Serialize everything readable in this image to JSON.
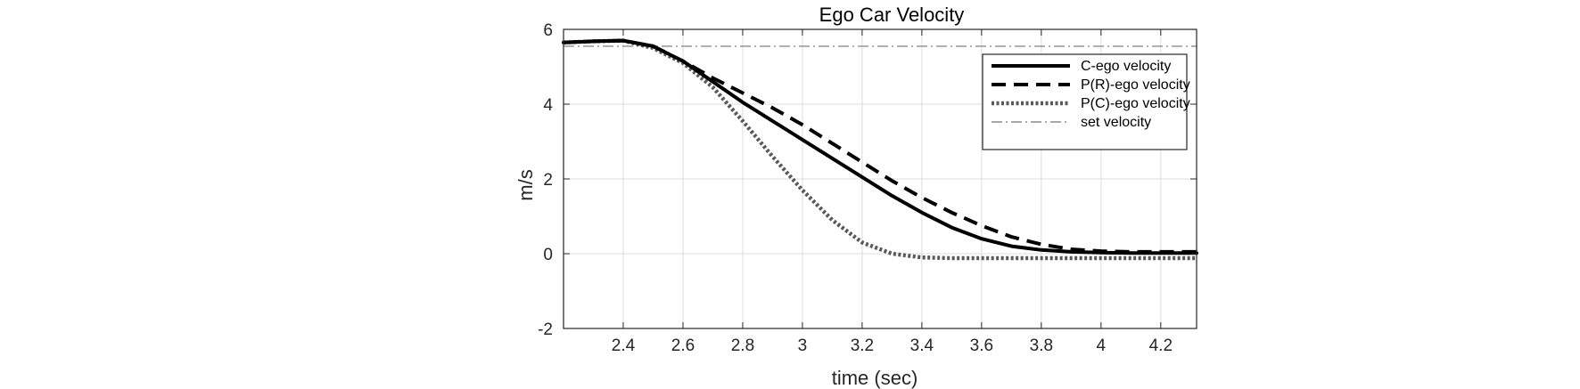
{
  "chart_data": {
    "type": "line",
    "title": "Ego Car Velocity",
    "xlabel": "time (sec)",
    "ylabel": "m/s",
    "xlim": [
      2.2,
      4.32
    ],
    "ylim": [
      -2,
      6
    ],
    "xticks": [
      2.4,
      2.6,
      2.8,
      3,
      3.2,
      3.4,
      3.6,
      3.8,
      4,
      4.2
    ],
    "yticks": [
      -2,
      0,
      2,
      4,
      6
    ],
    "grid": true,
    "legend_position": "top-right",
    "series": [
      {
        "name": "C-ego velocity",
        "color": "#000000",
        "style": "solid",
        "x": [
          2.2,
          2.3,
          2.4,
          2.5,
          2.6,
          2.7,
          2.8,
          2.9,
          3.0,
          3.1,
          3.2,
          3.3,
          3.4,
          3.5,
          3.6,
          3.7,
          3.8,
          3.9,
          4.0,
          4.1,
          4.2,
          4.32
        ],
        "y": [
          5.65,
          5.68,
          5.7,
          5.55,
          5.15,
          4.6,
          4.05,
          3.55,
          3.05,
          2.55,
          2.05,
          1.55,
          1.1,
          0.7,
          0.4,
          0.2,
          0.1,
          0.05,
          0.03,
          0.02,
          0.02,
          0.02
        ]
      },
      {
        "name": "P(R)-ego velocity",
        "color": "#000000",
        "style": "dashed",
        "x": [
          2.2,
          2.3,
          2.4,
          2.5,
          2.6,
          2.7,
          2.8,
          2.9,
          3.0,
          3.1,
          3.2,
          3.3,
          3.4,
          3.5,
          3.6,
          3.7,
          3.8,
          3.9,
          4.0,
          4.1,
          4.2,
          4.32
        ],
        "y": [
          5.65,
          5.68,
          5.7,
          5.55,
          5.15,
          4.7,
          4.3,
          3.9,
          3.45,
          2.95,
          2.45,
          1.95,
          1.5,
          1.1,
          0.75,
          0.45,
          0.25,
          0.12,
          0.07,
          0.05,
          0.05,
          0.05
        ]
      },
      {
        "name": "P(C)-ego velocity",
        "color": "#595959",
        "style": "dotted",
        "x": [
          2.2,
          2.3,
          2.4,
          2.5,
          2.6,
          2.7,
          2.8,
          2.9,
          3.0,
          3.1,
          3.2,
          3.3,
          3.4,
          3.5,
          3.6,
          3.7,
          3.8,
          3.9,
          4.0,
          4.1,
          4.2,
          4.32
        ],
        "y": [
          5.65,
          5.68,
          5.7,
          5.5,
          5.1,
          4.45,
          3.55,
          2.6,
          1.7,
          0.9,
          0.3,
          0.0,
          -0.1,
          -0.12,
          -0.12,
          -0.12,
          -0.12,
          -0.12,
          -0.12,
          -0.12,
          -0.12,
          -0.12
        ]
      },
      {
        "name": "set velocity",
        "color": "#8c8c8c",
        "style": "dashdot",
        "x": [
          2.2,
          4.32
        ],
        "y": [
          5.55,
          5.55
        ]
      }
    ]
  }
}
